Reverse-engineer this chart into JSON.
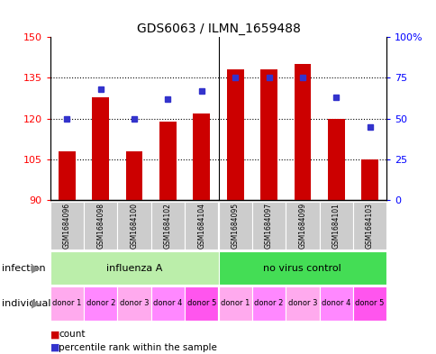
{
  "title": "GDS6063 / ILMN_1659488",
  "samples": [
    "GSM1684096",
    "GSM1684098",
    "GSM1684100",
    "GSM1684102",
    "GSM1684104",
    "GSM1684095",
    "GSM1684097",
    "GSM1684099",
    "GSM1684101",
    "GSM1684103"
  ],
  "counts": [
    108,
    128,
    108,
    119,
    122,
    138,
    138,
    140,
    120,
    105
  ],
  "percentiles": [
    50,
    68,
    50,
    62,
    67,
    75,
    75,
    75,
    63,
    45
  ],
  "ylim_left": [
    90,
    150
  ],
  "ylim_right": [
    0,
    100
  ],
  "yticks_left": [
    90,
    105,
    120,
    135,
    150
  ],
  "yticks_right": [
    0,
    25,
    50,
    75,
    100
  ],
  "bar_color": "#CC0000",
  "dot_color": "#3333CC",
  "infection_groups": [
    {
      "label": "influenza A",
      "start": 0,
      "end": 5,
      "color": "#BBEEAA"
    },
    {
      "label": "no virus control",
      "start": 5,
      "end": 10,
      "color": "#44DD55"
    }
  ],
  "individual_labels": [
    "donor 1",
    "donor 2",
    "donor 3",
    "donor 4",
    "donor 5",
    "donor 1",
    "donor 2",
    "donor 3",
    "donor 4",
    "donor 5"
  ],
  "individual_colors": [
    "#FFAAFF",
    "#FF88FF",
    "#FF99EE",
    "#FF88FF",
    "#FF66FF",
    "#FFAAFF",
    "#FF88FF",
    "#FF99EE",
    "#FF88FF",
    "#FF66FF"
  ],
  "sample_color": "#CCCCCC",
  "infection_label": "infection",
  "individual_label": "individual",
  "legend_count": "count",
  "legend_percentile": "percentile rank within the sample",
  "bar_width": 0.5,
  "title_fontsize": 10
}
